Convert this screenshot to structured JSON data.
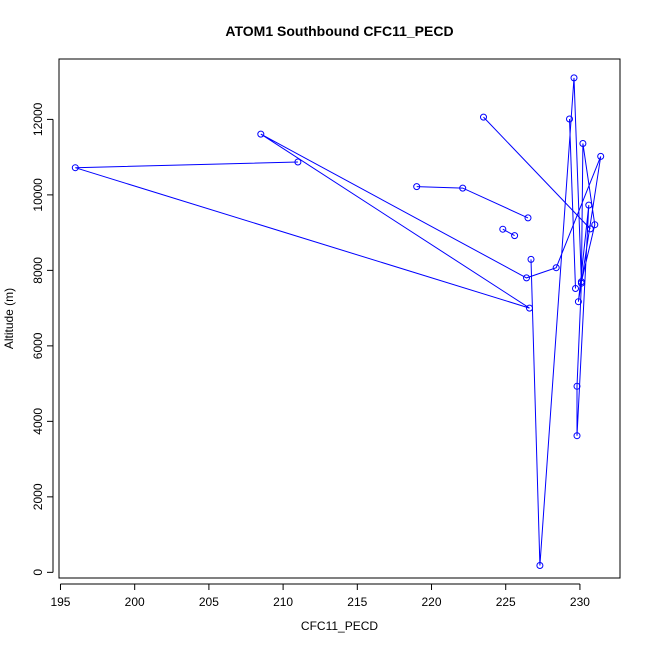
{
  "chart_data": {
    "type": "line",
    "title": "ATOM1 Southbound CFC11_PECD",
    "xlabel": "CFC11_PECD",
    "ylabel": "Altitude (m)",
    "xlim": [
      194.9,
      232.7
    ],
    "ylim": [
      -150,
      13600
    ],
    "xticks": [
      195,
      200,
      205,
      210,
      215,
      220,
      225,
      230
    ],
    "yticks": [
      0,
      2000,
      4000,
      6000,
      8000,
      10000,
      12000
    ],
    "grid": false,
    "markers": "open-circle",
    "series": [
      {
        "color": "#0000ff",
        "points": [
          {
            "x": 211.0,
            "y": 10870
          },
          {
            "x": 196.0,
            "y": 10720
          },
          {
            "x": 226.6,
            "y": 7000
          },
          {
            "x": 208.5,
            "y": 11610
          },
          {
            "x": 226.4,
            "y": 7800
          },
          {
            "x": 228.4,
            "y": 8070
          },
          {
            "x": 231.4,
            "y": 11020
          },
          {
            "x": 229.9,
            "y": 7170
          },
          {
            "x": 230.6,
            "y": 9730
          },
          {
            "x": 229.8,
            "y": 3620
          },
          {
            "x": 229.8,
            "y": 4930
          },
          {
            "x": 230.1,
            "y": 7660
          },
          {
            "x": 230.2,
            "y": 11360
          },
          {
            "x": 231.0,
            "y": 9210
          },
          {
            "x": 230.1,
            "y": 7700
          },
          {
            "x": 229.6,
            "y": 13100
          },
          {
            "x": 227.3,
            "y": 180
          },
          {
            "x": 226.7,
            "y": 8290
          }
        ]
      },
      {
        "color": "#0000ff",
        "points": [
          {
            "x": 219.0,
            "y": 10220
          },
          {
            "x": 222.1,
            "y": 10180
          },
          {
            "x": 226.5,
            "y": 9390
          }
        ]
      },
      {
        "color": "#0000ff",
        "points": [
          {
            "x": 225.6,
            "y": 8920
          },
          {
            "x": 224.8,
            "y": 9090
          }
        ]
      },
      {
        "color": "#0000ff",
        "points": [
          {
            "x": 223.5,
            "y": 12060
          },
          {
            "x": 230.7,
            "y": 9100
          }
        ]
      },
      {
        "color": "#0000ff",
        "points": [
          {
            "x": 229.3,
            "y": 12010
          },
          {
            "x": 229.7,
            "y": 7520
          }
        ]
      }
    ]
  }
}
